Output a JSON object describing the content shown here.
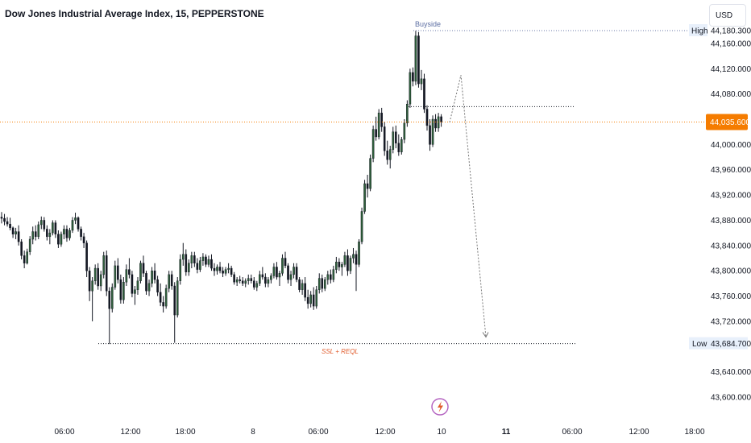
{
  "header": {
    "title": "Dow Jones Industrial Average Index, 15, PEPPERSTONE"
  },
  "toolbar": {
    "currency_label": "USD"
  },
  "colors": {
    "up": "#1e2a1e",
    "up_body": "#2e5e3a",
    "down": "#131722",
    "price_line": "#f57c00",
    "axis_text": "#131722",
    "dotted": "#555555",
    "annotation_buyside": "#5d6fa3",
    "annotation_ssl": "#e05a2a",
    "badge_bg": "#e8f0fb"
  },
  "chart_data": {
    "type": "candlestick",
    "symbol": "Dow Jones Industrial Average Index",
    "interval": "15",
    "source": "PEPPERSTONE",
    "currency": "USD",
    "ylim": [
      43580,
      44200
    ],
    "y_ticks": [
      "44,160.000",
      "44,120.000",
      "44,080.000",
      "44,000.000",
      "43,960.000",
      "43,920.000",
      "43,880.000",
      "43,840.000",
      "43,800.000",
      "43,760.000",
      "43,720.000",
      "43,640.000",
      "43,600.000"
    ],
    "y_tick_values": [
      44160,
      44120,
      44080,
      44000,
      43960,
      43920,
      43880,
      43840,
      43800,
      43760,
      43720,
      43640,
      43600
    ],
    "x_ticks": [
      "06:00",
      "12:00",
      "18:00",
      "8",
      "06:00",
      "12:00",
      "10",
      "11",
      "06:00",
      "12:00",
      "18:00"
    ],
    "x_tick_bold": [
      false,
      false,
      false,
      false,
      false,
      false,
      false,
      true,
      false,
      false,
      false
    ],
    "current_price": {
      "label": "44,035.600",
      "value": 44035.6
    },
    "high": {
      "label": "High",
      "value_label": "44,180.300",
      "value": 44180.3
    },
    "low": {
      "label": "Low",
      "value_label": "43,684.700",
      "value": 43684.7
    },
    "annotations": [
      {
        "text": "Buyside",
        "value": 44180.3
      },
      {
        "text": "SSL + REQL",
        "value": 43684.7
      }
    ],
    "level_line": 44060,
    "projection": [
      44035,
      44110,
      43695
    ],
    "candles": [
      [
        43885,
        43893,
        43875,
        43883
      ],
      [
        43883,
        43890,
        43872,
        43878
      ],
      [
        43878,
        43885,
        43870,
        43874
      ],
      [
        43874,
        43884,
        43864,
        43868
      ],
      [
        43868,
        43870,
        43852,
        43858
      ],
      [
        43858,
        43868,
        43850,
        43862
      ],
      [
        43862,
        43872,
        43840,
        43846
      ],
      [
        43846,
        43850,
        43818,
        43824
      ],
      [
        43824,
        43832,
        43804,
        43812
      ],
      [
        43812,
        43835,
        43810,
        43830
      ],
      [
        43830,
        43855,
        43825,
        43850
      ],
      [
        43850,
        43870,
        43842,
        43862
      ],
      [
        43862,
        43872,
        43848,
        43854
      ],
      [
        43854,
        43878,
        43850,
        43873
      ],
      [
        43873,
        43886,
        43866,
        43880
      ],
      [
        43880,
        43885,
        43862,
        43866
      ],
      [
        43866,
        43872,
        43848,
        43854
      ],
      [
        43854,
        43866,
        43842,
        43860
      ],
      [
        43860,
        43880,
        43856,
        43876
      ],
      [
        43876,
        43880,
        43852,
        43858
      ],
      [
        43858,
        43864,
        43836,
        43842
      ],
      [
        43842,
        43862,
        43838,
        43858
      ],
      [
        43858,
        43872,
        43850,
        43866
      ],
      [
        43866,
        43872,
        43846,
        43852
      ],
      [
        43852,
        43868,
        43848,
        43864
      ],
      [
        43864,
        43885,
        43860,
        43880
      ],
      [
        43880,
        43892,
        43874,
        43884
      ],
      [
        43884,
        43886,
        43862,
        43866
      ],
      [
        43866,
        43870,
        43848,
        43854
      ],
      [
        43854,
        43860,
        43836,
        43844
      ],
      [
        43844,
        43848,
        43790,
        43800
      ],
      [
        43800,
        43806,
        43752,
        43768
      ],
      [
        43768,
        43790,
        43720,
        43784
      ],
      [
        43784,
        43810,
        43778,
        43804
      ],
      [
        43804,
        43812,
        43770,
        43776
      ],
      [
        43776,
        43800,
        43768,
        43794
      ],
      [
        43794,
        43830,
        43788,
        43824
      ],
      [
        43824,
        43832,
        43760,
        43768
      ],
      [
        43768,
        43774,
        43684,
        43740
      ],
      [
        43740,
        43780,
        43734,
        43774
      ],
      [
        43774,
        43816,
        43770,
        43808
      ],
      [
        43808,
        43820,
        43780,
        43786
      ],
      [
        43786,
        43794,
        43748,
        43754
      ],
      [
        43754,
        43790,
        43748,
        43782
      ],
      [
        43782,
        43810,
        43776,
        43802
      ],
      [
        43802,
        43820,
        43788,
        43794
      ],
      [
        43794,
        43800,
        43758,
        43764
      ],
      [
        43764,
        43776,
        43746,
        43770
      ],
      [
        43770,
        43790,
        43762,
        43784
      ],
      [
        43784,
        43816,
        43780,
        43812
      ],
      [
        43812,
        43824,
        43790,
        43796
      ],
      [
        43796,
        43800,
        43762,
        43768
      ],
      [
        43768,
        43786,
        43760,
        43780
      ],
      [
        43780,
        43806,
        43774,
        43800
      ],
      [
        43800,
        43812,
        43780,
        43786
      ],
      [
        43786,
        43792,
        43760,
        43766
      ],
      [
        43766,
        43780,
        43744,
        43750
      ],
      [
        43750,
        43760,
        43734,
        43744
      ],
      [
        43744,
        43778,
        43740,
        43772
      ],
      [
        43772,
        43800,
        43766,
        43794
      ],
      [
        43794,
        43800,
        43770,
        43776
      ],
      [
        43776,
        43782,
        43686,
        43730
      ],
      [
        43730,
        43790,
        43726,
        43784
      ],
      [
        43784,
        43826,
        43778,
        43818
      ],
      [
        43818,
        43844,
        43808,
        43826
      ],
      [
        43826,
        43834,
        43792,
        43798
      ],
      [
        43798,
        43818,
        43792,
        43812
      ],
      [
        43812,
        43830,
        43804,
        43824
      ],
      [
        43824,
        43830,
        43806,
        43812
      ],
      [
        43812,
        43820,
        43796,
        43802
      ],
      [
        43802,
        43822,
        43798,
        43816
      ],
      [
        43816,
        43828,
        43808,
        43822
      ],
      [
        43822,
        43826,
        43806,
        43810
      ],
      [
        43810,
        43824,
        43806,
        43818
      ],
      [
        43818,
        43826,
        43800,
        43804
      ],
      [
        43804,
        43812,
        43792,
        43800
      ],
      [
        43800,
        43810,
        43794,
        43806
      ],
      [
        43806,
        43814,
        43796,
        43800
      ],
      [
        43800,
        43806,
        43790,
        43796
      ],
      [
        43796,
        43806,
        43792,
        43802
      ],
      [
        43802,
        43812,
        43796,
        43804
      ],
      [
        43804,
        43808,
        43790,
        43794
      ],
      [
        43794,
        43798,
        43778,
        43782
      ],
      [
        43782,
        43790,
        43776,
        43786
      ],
      [
        43786,
        43792,
        43780,
        43784
      ],
      [
        43784,
        43790,
        43776,
        43780
      ],
      [
        43780,
        43788,
        43774,
        43784
      ],
      [
        43784,
        43794,
        43778,
        43788
      ],
      [
        43788,
        43794,
        43780,
        43784
      ],
      [
        43784,
        43790,
        43770,
        43774
      ],
      [
        43774,
        43784,
        43768,
        43780
      ],
      [
        43780,
        43800,
        43776,
        43794
      ],
      [
        43794,
        43806,
        43786,
        43790
      ],
      [
        43790,
        43796,
        43774,
        43780
      ],
      [
        43780,
        43790,
        43774,
        43786
      ],
      [
        43786,
        43796,
        43780,
        43792
      ],
      [
        43792,
        43812,
        43788,
        43806
      ],
      [
        43806,
        43814,
        43786,
        43790
      ],
      [
        43790,
        43800,
        43776,
        43796
      ],
      [
        43796,
        43826,
        43792,
        43820
      ],
      [
        43820,
        43830,
        43804,
        43808
      ],
      [
        43808,
        43812,
        43780,
        43786
      ],
      [
        43786,
        43800,
        43776,
        43794
      ],
      [
        43794,
        43812,
        43788,
        43806
      ],
      [
        43806,
        43812,
        43782,
        43786
      ],
      [
        43786,
        43790,
        43766,
        43770
      ],
      [
        43770,
        43786,
        43762,
        43780
      ],
      [
        43780,
        43790,
        43752,
        43758
      ],
      [
        43758,
        43770,
        43740,
        43748
      ],
      [
        43748,
        43768,
        43742,
        43762
      ],
      [
        43762,
        43774,
        43738,
        43744
      ],
      [
        43744,
        43776,
        43740,
        43770
      ],
      [
        43770,
        43796,
        43764,
        43788
      ],
      [
        43788,
        43794,
        43766,
        43772
      ],
      [
        43772,
        43790,
        43768,
        43786
      ],
      [
        43786,
        43800,
        43778,
        43794
      ],
      [
        43794,
        43802,
        43780,
        43786
      ],
      [
        43786,
        43808,
        43782,
        43802
      ],
      [
        43802,
        43822,
        43796,
        43814
      ],
      [
        43814,
        43820,
        43800,
        43806
      ],
      [
        43806,
        43814,
        43792,
        43810
      ],
      [
        43810,
        43830,
        43806,
        43824
      ],
      [
        43824,
        43834,
        43792,
        43800
      ],
      [
        43800,
        43824,
        43795,
        43820
      ],
      [
        43820,
        43836,
        43812,
        43826
      ],
      [
        43826,
        43832,
        43768,
        43810
      ],
      [
        43810,
        43850,
        43806,
        43846
      ],
      [
        43846,
        43900,
        43842,
        43894
      ],
      [
        43894,
        43944,
        43890,
        43938
      ],
      [
        43938,
        43952,
        43916,
        43930
      ],
      [
        43930,
        43984,
        43926,
        43978
      ],
      [
        43978,
        44030,
        43972,
        44024
      ],
      [
        44024,
        44044,
        44006,
        44012
      ],
      [
        44012,
        44056,
        44008,
        44050
      ],
      [
        44050,
        44058,
        44020,
        44028
      ],
      [
        44028,
        44036,
        43982,
        43990
      ],
      [
        43990,
        44006,
        43968,
        43976
      ],
      [
        43976,
        43998,
        43962,
        43992
      ],
      [
        43992,
        44028,
        43986,
        44020
      ],
      [
        44020,
        44030,
        43994,
        44002
      ],
      [
        44002,
        44016,
        43982,
        43988
      ],
      [
        43988,
        44012,
        43984,
        44008
      ],
      [
        44008,
        44040,
        44002,
        44034
      ],
      [
        44034,
        44070,
        44028,
        44064
      ],
      [
        44064,
        44120,
        44058,
        44114
      ],
      [
        44114,
        44122,
        44092,
        44100
      ],
      [
        44100,
        44180,
        44094,
        44172
      ],
      [
        44172,
        44178,
        44090,
        44096
      ],
      [
        44096,
        44118,
        44086,
        44104
      ],
      [
        44104,
        44112,
        44050,
        44056
      ],
      [
        44056,
        44062,
        44022,
        44030
      ],
      [
        44030,
        44040,
        43990,
        44000
      ],
      [
        44000,
        44046,
        43996,
        44040
      ],
      [
        44040,
        44048,
        44020,
        44026
      ],
      [
        44026,
        44050,
        44020,
        44044
      ],
      [
        44044,
        44048,
        44028,
        44036
      ]
    ]
  }
}
